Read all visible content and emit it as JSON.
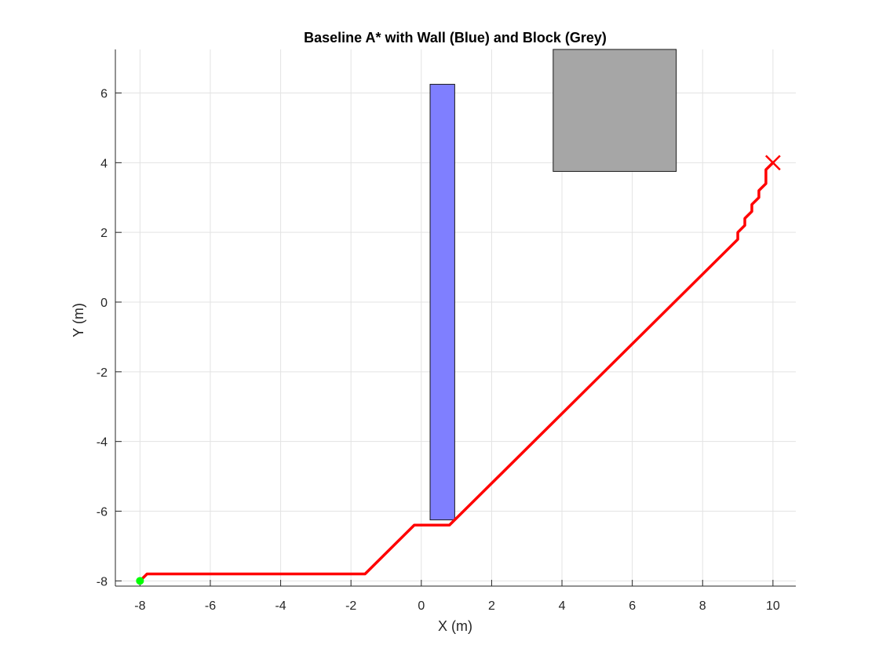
{
  "chart_data": {
    "type": "line",
    "title": "Baseline A* with Wall (Blue) and Block (Grey)",
    "xlabel": "X (m)",
    "ylabel": "Y (m)",
    "xlim": [
      -8.7,
      10.65
    ],
    "ylim": [
      -8.15,
      7.25
    ],
    "xticks": [
      -8,
      -6,
      -4,
      -2,
      0,
      2,
      4,
      6,
      8,
      10
    ],
    "yticks": [
      -8,
      -6,
      -4,
      -2,
      0,
      2,
      4,
      6
    ],
    "xtick_labels": [
      "-8",
      "-6",
      "-4",
      "-2",
      "0",
      "2",
      "4",
      "6",
      "8",
      "10"
    ],
    "ytick_labels": [
      "-8",
      "-6",
      "-4",
      "-2",
      "0",
      "2",
      "4",
      "6"
    ],
    "grid": true,
    "obstacles": [
      {
        "name": "Wall",
        "color": "#7f7fff",
        "x": [
          0.25,
          0.95
        ],
        "y": [
          -6.25,
          6.25
        ]
      },
      {
        "name": "Block",
        "color": "#a6a6a6",
        "x": [
          3.75,
          7.25
        ],
        "y": [
          3.75,
          7.25
        ]
      }
    ],
    "series": [
      {
        "color": "#ff0000",
        "x": [
          -8,
          -7.8,
          -1.6,
          -0.2,
          0.8,
          9.0,
          9.0,
          9.2,
          9.2,
          9.4,
          9.4,
          9.6,
          9.6,
          9.8,
          9.8,
          10
        ],
        "y": [
          -8,
          -7.8,
          -7.8,
          -6.4,
          -6.4,
          1.8,
          2.0,
          2.2,
          2.4,
          2.6,
          2.8,
          3.0,
          3.2,
          3.4,
          3.8,
          4
        ]
      }
    ],
    "start": {
      "x": -8,
      "y": -8,
      "color": "#00ff00"
    },
    "goal": {
      "x": 10,
      "y": 4,
      "color": "#ff0000"
    }
  }
}
